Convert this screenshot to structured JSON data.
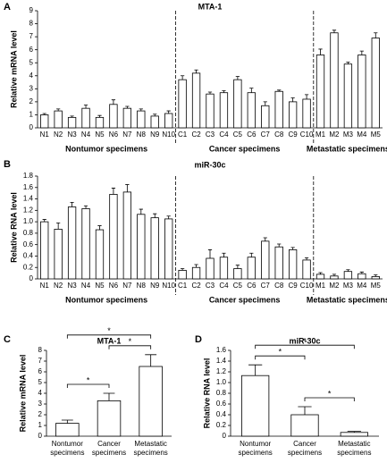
{
  "chart_data": [
    {
      "type": "bar",
      "panel_label": "A",
      "title": "MTA-1",
      "y_label": "Relative mRNA level",
      "color": "#ffffff",
      "categories": [
        "N1",
        "N2",
        "N3",
        "N4",
        "N5",
        "N6",
        "N7",
        "N8",
        "N9",
        "N10",
        "C1",
        "C2",
        "C3",
        "C4",
        "C5",
        "C6",
        "C7",
        "C8",
        "C9",
        "C10",
        "M1",
        "M2",
        "M3",
        "M4",
        "M5"
      ],
      "values": [
        1.0,
        1.3,
        0.8,
        1.5,
        0.8,
        1.8,
        1.5,
        1.3,
        0.9,
        1.1,
        3.7,
        4.2,
        2.6,
        2.7,
        3.7,
        2.7,
        1.7,
        2.8,
        2.0,
        2.2,
        5.6,
        7.3,
        4.9,
        5.6,
        6.9
      ],
      "errors": [
        0.1,
        0.15,
        0.1,
        0.25,
        0.15,
        0.35,
        0.15,
        0.15,
        0.15,
        0.2,
        0.3,
        0.25,
        0.15,
        0.15,
        0.25,
        0.35,
        0.3,
        0.1,
        0.3,
        0.35,
        0.45,
        0.2,
        0.15,
        0.3,
        0.4
      ],
      "groups": [
        {
          "name": "Nontumor specimens",
          "start": 0,
          "end": 9
        },
        {
          "name": "Cancer specimens",
          "start": 10,
          "end": 19
        },
        {
          "name": "Metastatic specimens",
          "start": 20,
          "end": 24
        }
      ],
      "ylim": [
        0,
        9
      ],
      "yticks": [
        0,
        1,
        2,
        3,
        4,
        5,
        6,
        7,
        8,
        9
      ]
    },
    {
      "type": "bar",
      "panel_label": "B",
      "title": "miR-30c",
      "y_label": "Relative RNA level",
      "color": "#ffffff",
      "categories": [
        "N1",
        "N2",
        "N3",
        "N4",
        "N5",
        "N6",
        "N7",
        "N8",
        "N9",
        "N10",
        "C1",
        "C2",
        "C3",
        "C4",
        "C5",
        "C6",
        "C7",
        "C8",
        "C9",
        "C10",
        "M1",
        "M2",
        "M3",
        "M4",
        "M5"
      ],
      "values": [
        1.0,
        0.87,
        1.26,
        1.23,
        0.86,
        1.48,
        1.52,
        1.13,
        1.07,
        1.05,
        0.15,
        0.2,
        0.36,
        0.38,
        0.18,
        0.38,
        0.66,
        0.56,
        0.51,
        0.33,
        0.08,
        0.05,
        0.13,
        0.09,
        0.04
      ],
      "errors": [
        0.04,
        0.11,
        0.08,
        0.05,
        0.07,
        0.11,
        0.13,
        0.09,
        0.07,
        0.05,
        0.03,
        0.05,
        0.15,
        0.07,
        0.06,
        0.07,
        0.06,
        0.05,
        0.04,
        0.04,
        0.03,
        0.03,
        0.03,
        0.03,
        0.03
      ],
      "groups": [
        {
          "name": "Nontumor specimens",
          "start": 0,
          "end": 9
        },
        {
          "name": "Cancer specimens",
          "start": 10,
          "end": 19
        },
        {
          "name": "Metastatic specimens",
          "start": 20,
          "end": 24
        }
      ],
      "ylim": [
        0,
        1.8
      ],
      "yticks": [
        0,
        0.2,
        0.4,
        0.6,
        0.8,
        {
          "value": 1,
          "label": "1.0"
        },
        1.2,
        1.4,
        1.6,
        1.8
      ]
    },
    {
      "type": "bar",
      "panel_label": "C",
      "title": "MTA-1",
      "y_label": "Relative mRNA level",
      "color": "#ffffff",
      "categories": [
        "Nontumor specimens",
        "Cancer specimens",
        "Metastatic specimens"
      ],
      "values": [
        1.2,
        3.3,
        6.5
      ],
      "errors": [
        0.3,
        0.7,
        1.1
      ],
      "significance": [
        {
          "from": 0,
          "to": 1,
          "label": "*"
        },
        {
          "from": 1,
          "to": 2,
          "label": "*"
        },
        {
          "from": 0,
          "to": 2,
          "label": "*"
        }
      ],
      "ylim": [
        0,
        8
      ],
      "yticks": [
        0,
        1,
        2,
        3,
        4,
        5,
        6,
        7,
        8
      ]
    },
    {
      "type": "bar",
      "panel_label": "D",
      "title": "miR-30c",
      "y_label": "Relative RNA level",
      "color": "#ffffff",
      "categories": [
        "Nontumor specimens",
        "Cancer specimens",
        "Metastatic specimens"
      ],
      "values": [
        1.13,
        0.4,
        0.07
      ],
      "errors": [
        0.2,
        0.15,
        0.02
      ],
      "significance": [
        {
          "from": 1,
          "to": 2,
          "label": "*"
        },
        {
          "from": 0,
          "to": 1,
          "label": "*"
        },
        {
          "from": 0,
          "to": 2,
          "label": "*"
        }
      ],
      "ylim": [
        0,
        1.6
      ],
      "yticks": [
        0,
        0.2,
        0.4,
        0.6,
        0.8,
        {
          "value": 1,
          "label": "1.0"
        },
        1.2,
        1.4,
        1.6
      ]
    }
  ]
}
